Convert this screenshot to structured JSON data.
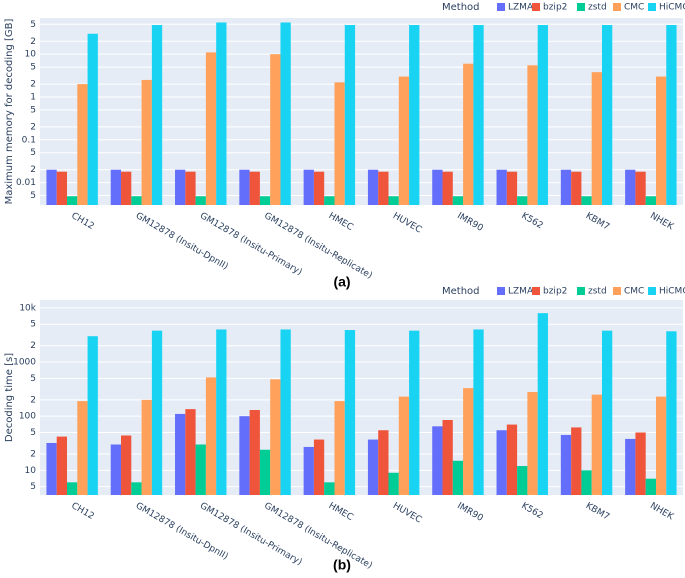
{
  "chart_data": [
    {
      "type": "bar",
      "log_y": true,
      "grid": true,
      "legend_title": "Method",
      "legend_position": "top-right",
      "ylabel": "Maximum memory for decoding [GB]",
      "caption": "(a)",
      "categories": [
        "CH12",
        "GM12878 (Insitu-DpnII)",
        "GM12878 (Insitu-Primary)",
        "GM12878 (Insitu-Replicate)",
        "HMEC",
        "HUVEC",
        "IMR90",
        "K562",
        "KBM7",
        "NHEK"
      ],
      "series": [
        {
          "name": "LZMA",
          "color": "#636efa",
          "values": [
            0.02,
            0.02,
            0.02,
            0.02,
            0.02,
            0.02,
            0.02,
            0.02,
            0.02,
            0.02
          ]
        },
        {
          "name": "bzip2",
          "color": "#ef553b",
          "values": [
            0.018,
            0.018,
            0.018,
            0.018,
            0.018,
            0.018,
            0.018,
            0.018,
            0.018,
            0.018
          ]
        },
        {
          "name": "zstd",
          "color": "#00cc96",
          "values": [
            0.0048,
            0.0048,
            0.0048,
            0.0048,
            0.0048,
            0.0048,
            0.0048,
            0.0048,
            0.0048,
            0.0048
          ]
        },
        {
          "name": "CMC",
          "color": "#ffa15a",
          "values": [
            2,
            2.5,
            11,
            10,
            2.2,
            3,
            6,
            5.5,
            3.8,
            3
          ]
        },
        {
          "name": "HiCMC",
          "color": "#19d3f3",
          "values": [
            30,
            48,
            55,
            55,
            48,
            48,
            48,
            48,
            48,
            48
          ]
        }
      ],
      "ylim": [
        0.003,
        70
      ],
      "yticks": [
        {
          "value": 0.005,
          "label": "5"
        },
        0.01,
        {
          "value": 0.02,
          "label": "2"
        },
        {
          "value": 0.05,
          "label": "5"
        },
        0.1,
        {
          "value": 0.2,
          "label": "2"
        },
        {
          "value": 0.5,
          "label": "5"
        },
        1,
        2,
        5,
        10,
        {
          "value": 20,
          "label": "2"
        },
        {
          "value": 50,
          "label": "5"
        }
      ]
    },
    {
      "type": "bar",
      "log_y": true,
      "grid": true,
      "legend_title": "Method",
      "legend_position": "top-right",
      "ylabel": "Decoding time [s]",
      "caption": "(b)",
      "categories": [
        "CH12",
        "GM12878 (Insitu-DpnII)",
        "GM12878 (Insitu-Primary)",
        "GM12878 (Insitu-Replicate)",
        "HMEC",
        "HUVEC",
        "IMR90",
        "K562",
        "KBM7",
        "NHEK"
      ],
      "series": [
        {
          "name": "LZMA",
          "color": "#636efa",
          "values": [
            32,
            30,
            110,
            100,
            27,
            37,
            65,
            55,
            45,
            38
          ]
        },
        {
          "name": "bzip2",
          "color": "#ef553b",
          "values": [
            42,
            44,
            135,
            130,
            37,
            55,
            85,
            70,
            62,
            50
          ]
        },
        {
          "name": "zstd",
          "color": "#00cc96",
          "values": [
            6,
            6,
            30,
            24,
            6,
            9,
            15,
            12,
            10,
            7
          ]
        },
        {
          "name": "CMC",
          "color": "#ffa15a",
          "values": [
            190,
            200,
            520,
            480,
            190,
            230,
            330,
            280,
            250,
            230
          ]
        },
        {
          "name": "HiCMC",
          "color": "#19d3f3",
          "values": [
            3000,
            3800,
            4000,
            4000,
            3900,
            3800,
            4000,
            8000,
            3800,
            3700
          ]
        }
      ],
      "ylim": [
        3.5,
        14000
      ],
      "yticks": [
        5,
        10,
        {
          "value": 20,
          "label": "2"
        },
        {
          "value": 50,
          "label": "5"
        },
        100,
        {
          "value": 200,
          "label": "2"
        },
        {
          "value": 500,
          "label": "5"
        },
        1000,
        {
          "value": 2000,
          "label": "2"
        },
        {
          "value": 5000,
          "label": "5"
        },
        {
          "value": 10000,
          "label": "10k"
        }
      ]
    }
  ]
}
